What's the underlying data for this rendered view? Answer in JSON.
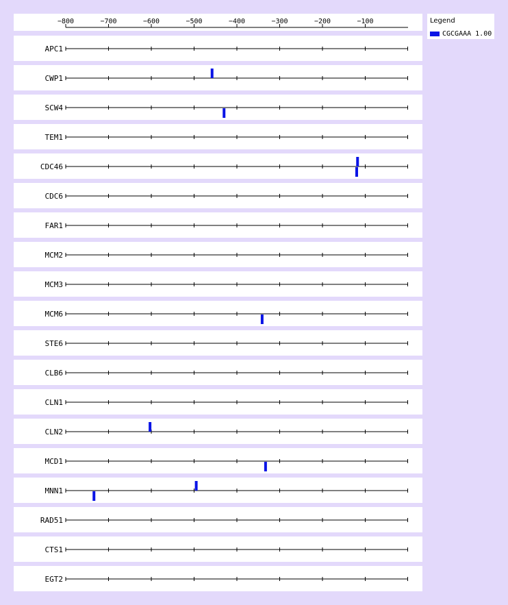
{
  "chart_data": {
    "type": "scatter",
    "title": "",
    "xlabel": "",
    "ylabel": "",
    "xlim": [
      -800,
      0
    ],
    "x_ticks": [
      -800,
      -700,
      -600,
      -500,
      -400,
      -300,
      -200,
      -100
    ],
    "x_tick_labels": [
      "−800",
      "−700",
      "−600",
      "−500",
      "−400",
      "−300",
      "−200",
      "−100"
    ],
    "genes": [
      "APC1",
      "CWP1",
      "SCW4",
      "TEM1",
      "CDC46",
      "CDC6",
      "FAR1",
      "MCM2",
      "MCM3",
      "MCM6",
      "STE6",
      "CLB6",
      "CLN1",
      "CLN2",
      "MCD1",
      "MNN1",
      "RAD51",
      "CTS1",
      "EGT2"
    ],
    "legend": {
      "title": "Legend",
      "position": "top-right"
    },
    "series": [
      {
        "name": "CGCGAAA 1.00",
        "color": "#0a14e6",
        "sites": [
          {
            "gene": "CWP1",
            "x": -458,
            "strand": "+"
          },
          {
            "gene": "SCW4",
            "x": -430,
            "strand": "-"
          },
          {
            "gene": "CDC46",
            "x": -118,
            "strand": "+"
          },
          {
            "gene": "CDC46",
            "x": -120,
            "strand": "-"
          },
          {
            "gene": "MCM6",
            "x": -341,
            "strand": "-"
          },
          {
            "gene": "CLN2",
            "x": -603,
            "strand": "+"
          },
          {
            "gene": "MCD1",
            "x": -333,
            "strand": "-"
          },
          {
            "gene": "MNN1",
            "x": -495,
            "strand": "+"
          },
          {
            "gene": "MNN1",
            "x": -734,
            "strand": "-"
          }
        ]
      }
    ]
  }
}
